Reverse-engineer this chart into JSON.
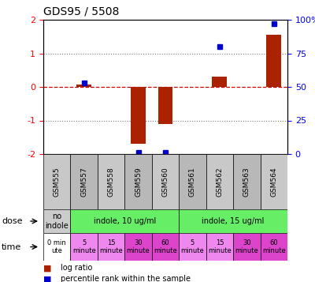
{
  "title": "GDS95 / 5508",
  "samples": [
    "GSM555",
    "GSM557",
    "GSM558",
    "GSM559",
    "GSM560",
    "GSM561",
    "GSM562",
    "GSM563",
    "GSM564"
  ],
  "log_ratio": [
    0.0,
    0.08,
    0.0,
    -1.7,
    -1.1,
    0.0,
    0.3,
    0.0,
    1.55
  ],
  "percentile": [
    null,
    0.12,
    null,
    -1.95,
    -1.95,
    null,
    1.2,
    null,
    1.88
  ],
  "ylim": [
    -2.0,
    2.0
  ],
  "bar_color": "#aa2200",
  "dot_color": "#0000cc",
  "hline_color": "#cc0000",
  "dotted_color": "#777777",
  "dose_row": [
    {
      "label": "no\nindole",
      "start": 0,
      "end": 1,
      "color": "#cccccc"
    },
    {
      "label": "indole, 10 ug/ml",
      "start": 1,
      "end": 5,
      "color": "#66ee66"
    },
    {
      "label": "indole, 15 ug/ml",
      "start": 5,
      "end": 9,
      "color": "#66ee66"
    }
  ],
  "time_row": [
    {
      "label": "0 min\nute",
      "start": 0,
      "end": 1,
      "color": "#ffffff"
    },
    {
      "label": "5\nminute",
      "start": 1,
      "end": 2,
      "color": "#ee88ee"
    },
    {
      "label": "15\nminute",
      "start": 2,
      "end": 3,
      "color": "#ee88ee"
    },
    {
      "label": "30\nminute",
      "start": 3,
      "end": 4,
      "color": "#dd44cc"
    },
    {
      "label": "60\nminute",
      "start": 4,
      "end": 5,
      "color": "#dd44cc"
    },
    {
      "label": "5\nminute",
      "start": 5,
      "end": 6,
      "color": "#ee88ee"
    },
    {
      "label": "15\nminute",
      "start": 6,
      "end": 7,
      "color": "#ee88ee"
    },
    {
      "label": "30\nminute",
      "start": 7,
      "end": 8,
      "color": "#dd44cc"
    },
    {
      "label": "60\nminute",
      "start": 8,
      "end": 9,
      "color": "#dd44cc"
    }
  ],
  "legend_items": [
    {
      "color": "#aa2200",
      "label": "log ratio"
    },
    {
      "color": "#0000cc",
      "label": "percentile rank within the sample"
    }
  ],
  "sample_colors_even": "#c8c8c8",
  "sample_colors_odd": "#b8b8b8",
  "right_ytick_labels": [
    "0",
    "25",
    "50",
    "75",
    "100%"
  ],
  "right_ytick_positions": [
    -2.0,
    -1.0,
    0.0,
    1.0,
    2.0
  ]
}
